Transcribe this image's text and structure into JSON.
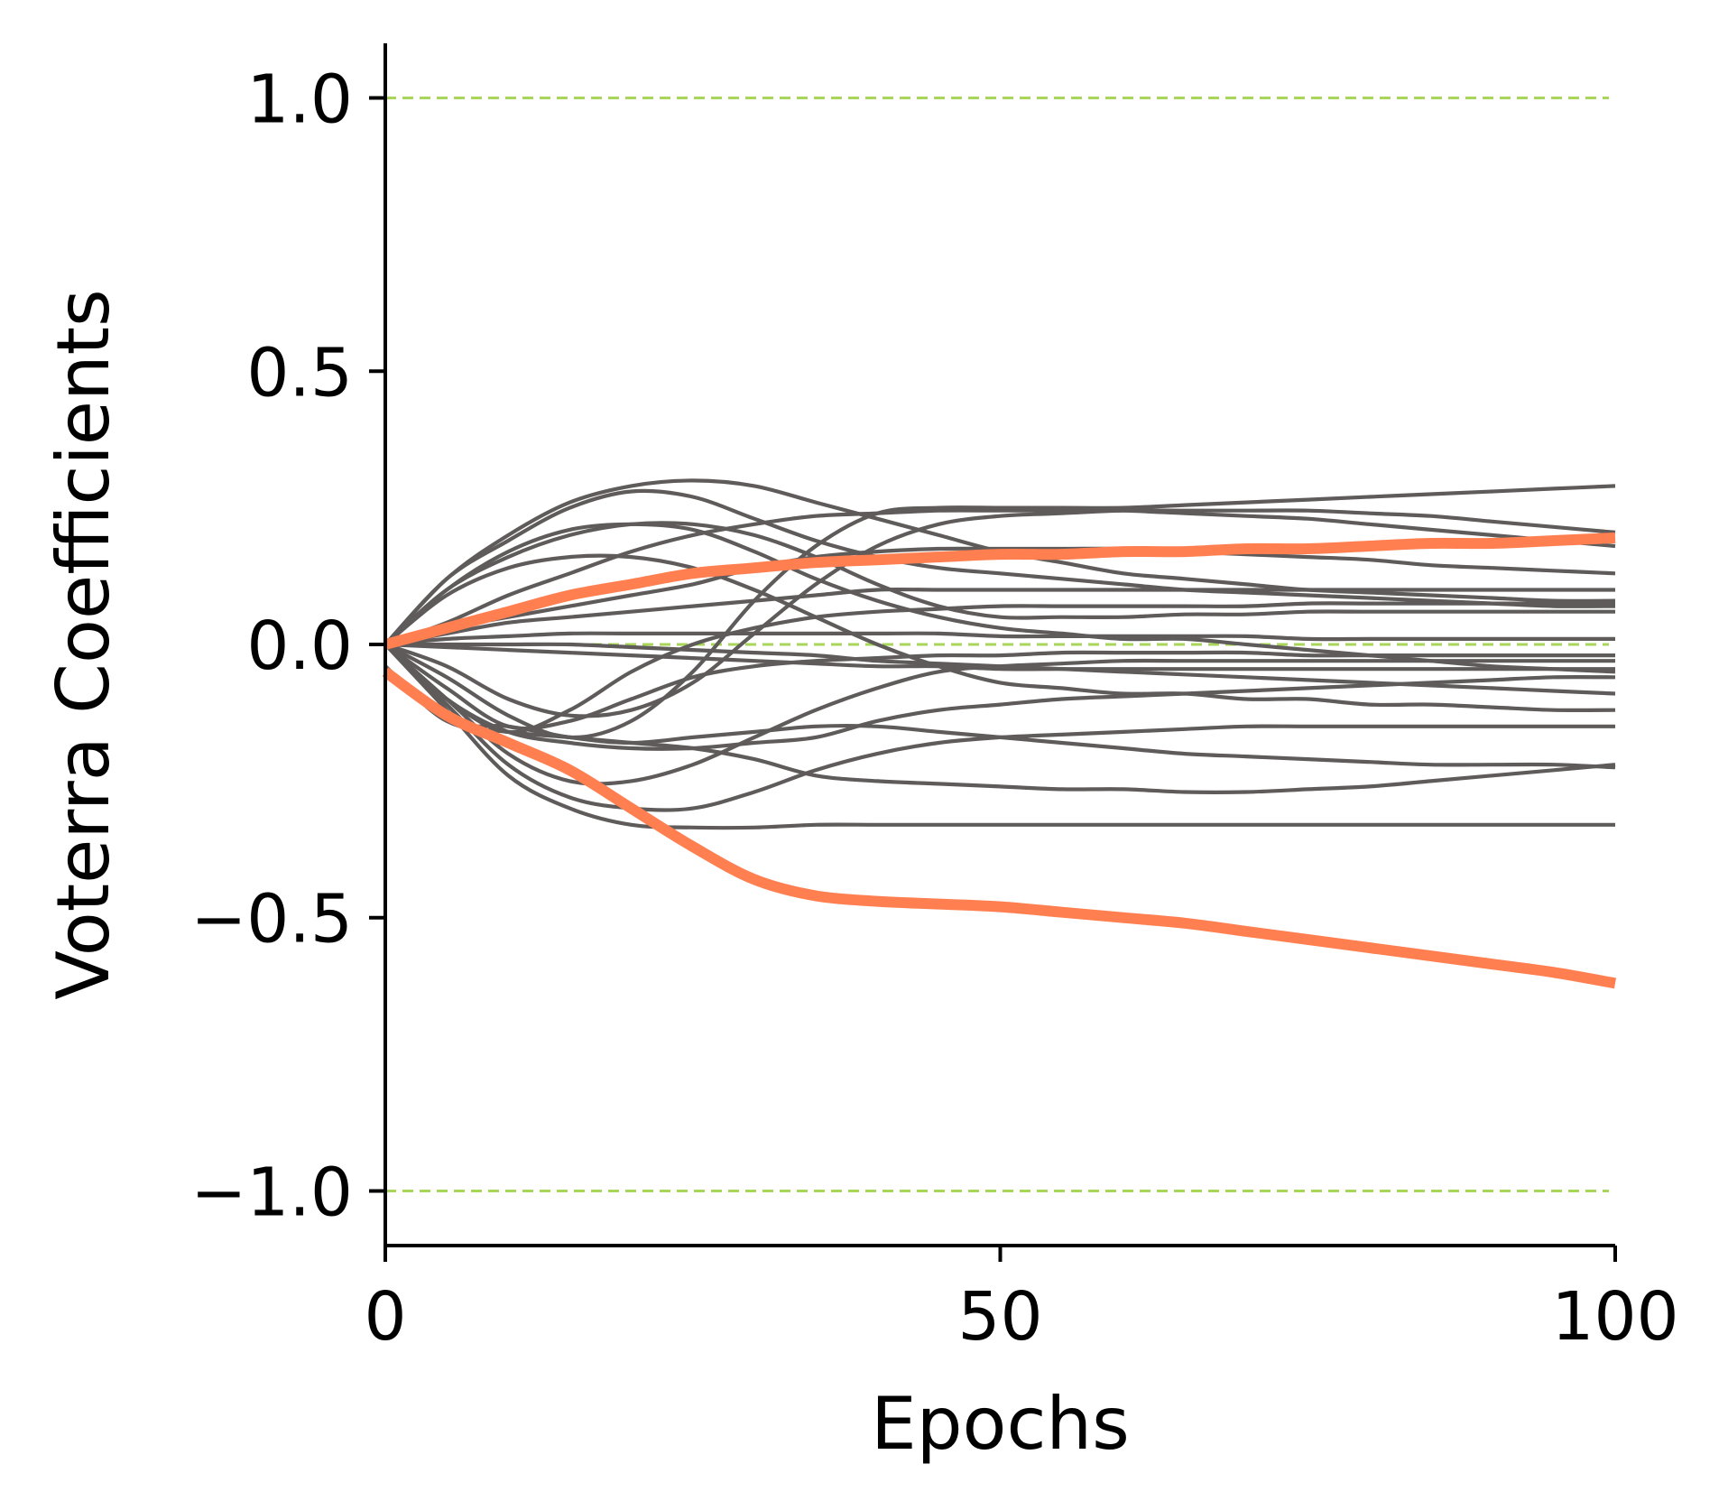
{
  "chart_data": {
    "type": "line",
    "xlabel": "Epochs",
    "ylabel": "Voterra Coefficients",
    "xlim": [
      0,
      100
    ],
    "ylim": [
      -1.1,
      1.1
    ],
    "x_ticks": [
      0,
      50,
      100
    ],
    "x_tick_labels": [
      "0",
      "50",
      "100"
    ],
    "y_ticks": [
      1.0,
      0.5,
      0.0,
      -0.5,
      -1.0
    ],
    "y_tick_labels": [
      "1.0",
      "0.5",
      "0.0",
      "−0.5",
      "−1.0"
    ],
    "grid": false,
    "reference_lines": [
      {
        "y": 1.0,
        "style": "dashed",
        "color": "#A8D65A"
      },
      {
        "y": 0.0,
        "style": "dashed",
        "color": "#A8D65A"
      },
      {
        "y": -1.0,
        "style": "dashed",
        "color": "#A8D65A"
      }
    ],
    "colors": {
      "background": "#FFFFFF",
      "axis": "#000000",
      "highlight": "#FF7F50",
      "other": "#5F5B5B",
      "reference": "#A8D65A"
    },
    "x": [
      0,
      5,
      10,
      15,
      20,
      25,
      30,
      35,
      40,
      45,
      50,
      55,
      60,
      65,
      70,
      75,
      80,
      85,
      90,
      95,
      100
    ],
    "series": [
      {
        "highlight": true,
        "values": [
          -0.05,
          -0.13,
          -0.18,
          -0.23,
          -0.3,
          -0.37,
          -0.43,
          -0.46,
          -0.47,
          -0.475,
          -0.48,
          -0.49,
          -0.5,
          -0.51,
          -0.525,
          -0.54,
          -0.555,
          -0.57,
          -0.585,
          -0.6,
          -0.62
        ]
      },
      {
        "highlight": true,
        "values": [
          0.0,
          0.03,
          0.06,
          0.09,
          0.11,
          0.13,
          0.14,
          0.15,
          0.155,
          0.16,
          0.165,
          0.165,
          0.17,
          0.17,
          0.175,
          0.175,
          0.18,
          0.185,
          0.185,
          0.19,
          0.195
        ]
      },
      {
        "highlight": false,
        "values": [
          0.0,
          0.12,
          0.2,
          0.26,
          0.29,
          0.3,
          0.29,
          0.26,
          0.23,
          0.2,
          0.17,
          0.15,
          0.13,
          0.12,
          0.11,
          0.1,
          0.095,
          0.09,
          0.085,
          0.08,
          0.08
        ]
      },
      {
        "highlight": false,
        "values": [
          0.0,
          0.12,
          0.19,
          0.25,
          0.28,
          0.27,
          0.23,
          0.19,
          0.16,
          0.14,
          0.13,
          0.12,
          0.11,
          0.1,
          0.095,
          0.09,
          0.085,
          0.08,
          0.075,
          0.07,
          0.07
        ]
      },
      {
        "highlight": false,
        "values": [
          0.0,
          0.1,
          0.17,
          0.21,
          0.22,
          0.21,
          0.17,
          0.12,
          0.08,
          0.05,
          0.03,
          0.02,
          0.01,
          0.01,
          0.0,
          -0.01,
          -0.02,
          -0.03,
          -0.04,
          -0.045,
          -0.05
        ]
      },
      {
        "highlight": false,
        "values": [
          0.0,
          0.09,
          0.14,
          0.16,
          0.16,
          0.14,
          0.1,
          0.05,
          0.0,
          -0.04,
          -0.07,
          -0.08,
          -0.09,
          -0.09,
          -0.1,
          -0.1,
          -0.11,
          -0.11,
          -0.115,
          -0.12,
          -0.12
        ]
      },
      {
        "highlight": false,
        "values": [
          0.0,
          0.1,
          0.16,
          0.2,
          0.22,
          0.22,
          0.2,
          0.16,
          0.11,
          0.07,
          0.05,
          0.05,
          0.05,
          0.055,
          0.055,
          0.06,
          0.06,
          0.06,
          0.06,
          0.06,
          0.06
        ]
      },
      {
        "highlight": false,
        "values": [
          0.0,
          0.03,
          0.05,
          0.07,
          0.09,
          0.11,
          0.14,
          0.16,
          0.17,
          0.175,
          0.175,
          0.175,
          0.175,
          0.17,
          0.165,
          0.16,
          0.155,
          0.145,
          0.14,
          0.135,
          0.13
        ]
      },
      {
        "highlight": false,
        "values": [
          0.0,
          0.04,
          0.09,
          0.13,
          0.17,
          0.2,
          0.22,
          0.235,
          0.24,
          0.245,
          0.245,
          0.245,
          0.245,
          0.24,
          0.235,
          0.23,
          0.22,
          0.21,
          0.2,
          0.19,
          0.18
        ]
      },
      {
        "highlight": false,
        "values": [
          0.0,
          -0.04,
          -0.1,
          -0.13,
          -0.12,
          -0.07,
          0.02,
          0.11,
          0.18,
          0.22,
          0.235,
          0.24,
          0.245,
          0.245,
          0.245,
          0.245,
          0.24,
          0.235,
          0.225,
          0.215,
          0.205
        ]
      },
      {
        "highlight": false,
        "values": [
          0.0,
          -0.06,
          -0.13,
          -0.17,
          -0.14,
          -0.05,
          0.08,
          0.18,
          0.24,
          0.25,
          0.25,
          0.25,
          0.25,
          0.255,
          0.26,
          0.265,
          0.27,
          0.275,
          0.28,
          0.285,
          0.29
        ]
      },
      {
        "highlight": false,
        "values": [
          0.0,
          0.02,
          0.04,
          0.05,
          0.06,
          0.07,
          0.08,
          0.09,
          0.1,
          0.1,
          0.1,
          0.1,
          0.1,
          0.1,
          0.1,
          0.1,
          0.1,
          0.1,
          0.1,
          0.1,
          0.1
        ]
      },
      {
        "highlight": false,
        "values": [
          0.0,
          0.01,
          0.015,
          0.02,
          0.02,
          0.02,
          0.02,
          0.02,
          0.02,
          0.02,
          0.015,
          0.015,
          0.015,
          0.015,
          0.015,
          0.01,
          0.01,
          0.01,
          0.01,
          0.01,
          0.01
        ]
      },
      {
        "highlight": false,
        "values": [
          0.0,
          -0.005,
          -0.01,
          -0.015,
          -0.02,
          -0.025,
          -0.03,
          -0.035,
          -0.04,
          -0.04,
          -0.045,
          -0.045,
          -0.045,
          -0.045,
          -0.045,
          -0.045,
          -0.045,
          -0.045,
          -0.045,
          -0.045,
          -0.045
        ]
      },
      {
        "highlight": false,
        "values": [
          0.0,
          -0.1,
          -0.16,
          -0.12,
          -0.05,
          0.0,
          0.03,
          0.05,
          0.06,
          0.065,
          0.07,
          0.07,
          0.07,
          0.07,
          0.07,
          0.075,
          0.075,
          0.075,
          0.075,
          0.075,
          0.075
        ]
      },
      {
        "highlight": false,
        "values": [
          0.0,
          -0.08,
          -0.15,
          -0.14,
          -0.1,
          -0.06,
          -0.04,
          -0.03,
          -0.025,
          -0.02,
          -0.02,
          -0.015,
          -0.015,
          -0.015,
          -0.015,
          -0.02,
          -0.02,
          -0.02,
          -0.02,
          -0.02,
          -0.02
        ]
      },
      {
        "highlight": false,
        "values": [
          -0.04,
          -0.14,
          -0.16,
          -0.17,
          -0.18,
          -0.19,
          -0.21,
          -0.24,
          -0.25,
          -0.255,
          -0.26,
          -0.265,
          -0.265,
          -0.27,
          -0.27,
          -0.265,
          -0.26,
          -0.25,
          -0.24,
          -0.23,
          -0.22
        ]
      },
      {
        "highlight": false,
        "values": [
          -0.04,
          -0.14,
          -0.15,
          -0.17,
          -0.18,
          -0.17,
          -0.16,
          -0.15,
          -0.15,
          -0.16,
          -0.17,
          -0.18,
          -0.19,
          -0.2,
          -0.205,
          -0.21,
          -0.215,
          -0.22,
          -0.22,
          -0.22,
          -0.225
        ]
      },
      {
        "highlight": false,
        "values": [
          0.0,
          -0.1,
          -0.2,
          -0.25,
          -0.25,
          -0.22,
          -0.17,
          -0.12,
          -0.08,
          -0.05,
          -0.04,
          -0.035,
          -0.03,
          -0.03,
          -0.03,
          -0.03,
          -0.03,
          -0.03,
          -0.03,
          -0.03,
          -0.03
        ]
      },
      {
        "highlight": false,
        "values": [
          0.0,
          -0.11,
          -0.22,
          -0.28,
          -0.3,
          -0.3,
          -0.27,
          -0.23,
          -0.2,
          -0.18,
          -0.17,
          -0.165,
          -0.16,
          -0.155,
          -0.15,
          -0.15,
          -0.15,
          -0.15,
          -0.15,
          -0.15,
          -0.15
        ]
      },
      {
        "highlight": false,
        "values": [
          0.0,
          -0.12,
          -0.24,
          -0.3,
          -0.33,
          -0.335,
          -0.335,
          -0.33,
          -0.33,
          -0.33,
          -0.33,
          -0.33,
          -0.33,
          -0.33,
          -0.33,
          -0.33,
          -0.33,
          -0.33,
          -0.33,
          -0.33,
          -0.33
        ]
      },
      {
        "highlight": false,
        "values": [
          0.0,
          -0.1,
          -0.16,
          -0.18,
          -0.19,
          -0.19,
          -0.18,
          -0.17,
          -0.14,
          -0.12,
          -0.11,
          -0.1,
          -0.095,
          -0.09,
          -0.085,
          -0.08,
          -0.075,
          -0.07,
          -0.065,
          -0.06,
          -0.06
        ]
      },
      {
        "highlight": false,
        "values": [
          0.0,
          0.0,
          0.0,
          0.0,
          -0.005,
          -0.01,
          -0.015,
          -0.02,
          -0.03,
          -0.035,
          -0.04,
          -0.045,
          -0.05,
          -0.055,
          -0.06,
          -0.065,
          -0.07,
          -0.075,
          -0.08,
          -0.085,
          -0.09
        ]
      }
    ]
  }
}
